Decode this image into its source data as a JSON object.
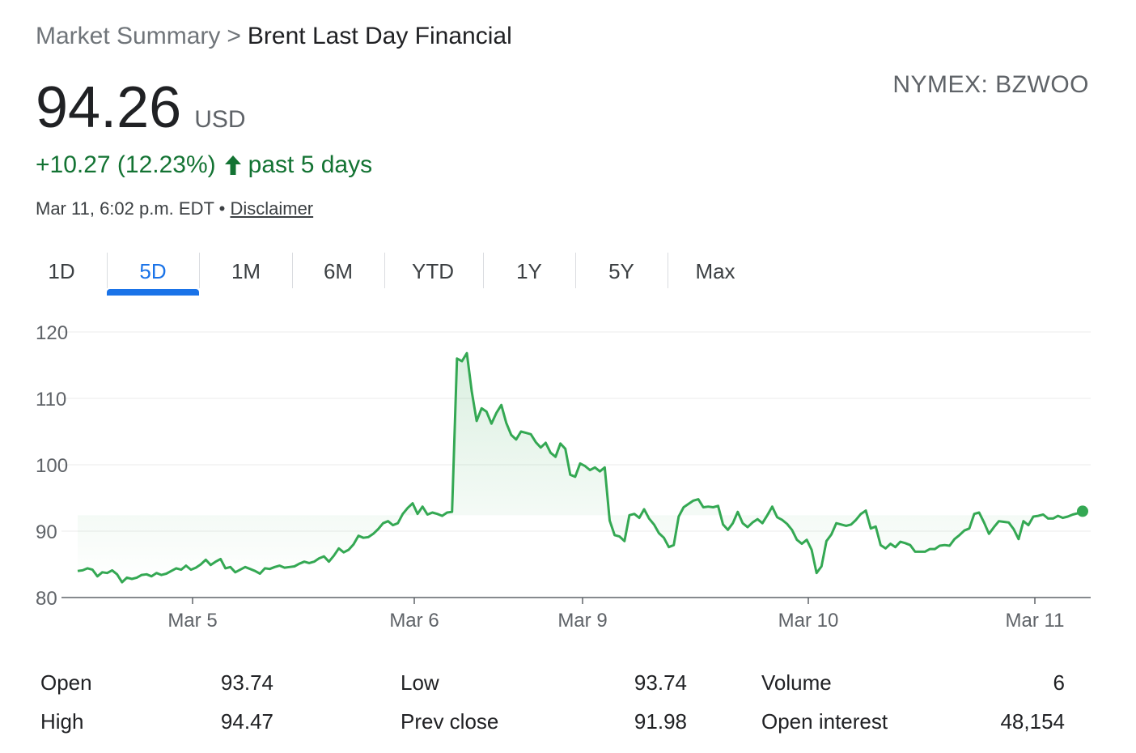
{
  "breadcrumb": {
    "parent": "Market Summary",
    "separator": ">",
    "current": "Brent Last Day Financial"
  },
  "exchange": "NYMEX: BZWOO",
  "quote": {
    "price": "94.26",
    "currency": "USD",
    "change": "+10.27 (12.23%)",
    "period": "past 5 days",
    "timestamp": "Mar 11, 6:02 p.m. EDT",
    "bullet": "•",
    "disclaimer": "Disclaimer"
  },
  "colors": {
    "up": "#137333",
    "line": "#34a853",
    "accent": "#1a73e8"
  },
  "tabs": [
    {
      "label": "1D",
      "active": false
    },
    {
      "label": "5D",
      "active": true
    },
    {
      "label": "1M",
      "active": false
    },
    {
      "label": "6M",
      "active": false
    },
    {
      "label": "YTD",
      "active": false
    },
    {
      "label": "1Y",
      "active": false
    },
    {
      "label": "5Y",
      "active": false
    },
    {
      "label": "Max",
      "active": false
    }
  ],
  "chart_data": {
    "type": "line",
    "ylim": [
      80,
      120
    ],
    "yticks": [
      80,
      90,
      100,
      110,
      120
    ],
    "x_labels": [
      "Mar 5",
      "Mar 6",
      "Mar 9",
      "Mar 10",
      "Mar 11"
    ],
    "grid": true,
    "series": [
      {
        "values": [
          84.0,
          84.1,
          84.4,
          84.2,
          83.2,
          83.8,
          83.7,
          84.1,
          83.5,
          82.3,
          83.0,
          82.8,
          83.0,
          83.4,
          83.5,
          83.2,
          83.7,
          83.4,
          83.6,
          84.0,
          84.4,
          84.2,
          84.8,
          84.2,
          84.5,
          85.0,
          85.7,
          84.9,
          85.4,
          85.8,
          84.4,
          84.6,
          83.8,
          84.2,
          84.6,
          84.3,
          84.0,
          83.6,
          84.4,
          84.3,
          84.6,
          84.8,
          84.5,
          84.6,
          84.7,
          85.1,
          85.4,
          85.2,
          85.4,
          85.9,
          86.2,
          85.4,
          86.3,
          87.4,
          86.8,
          87.2,
          88.0,
          89.3,
          89.0,
          89.1,
          89.6,
          90.3,
          91.2,
          91.5,
          90.9,
          91.2,
          92.6,
          93.5,
          94.2,
          92.6,
          93.7,
          92.5,
          92.8,
          92.6,
          92.3,
          92.8,
          92.9,
          116.0,
          115.6,
          116.8,
          111.0,
          106.6,
          108.5,
          108.0,
          106.2,
          107.8,
          109.0,
          106.3,
          104.5,
          103.8,
          105.0,
          104.8,
          104.6,
          103.4,
          102.6,
          103.3,
          101.8,
          101.2,
          103.2,
          102.4,
          98.5,
          98.2,
          100.2,
          99.8,
          99.2,
          99.6,
          99.0,
          99.6,
          91.6,
          89.4,
          89.2,
          88.5,
          92.4,
          92.6,
          92.0,
          93.3,
          91.9,
          91.0,
          89.7,
          89.0,
          87.6,
          87.9,
          92.2,
          93.6,
          94.1,
          94.6,
          94.8,
          93.6,
          93.7,
          93.6,
          93.8,
          91.0,
          90.2,
          91.2,
          92.9,
          91.2,
          90.6,
          91.3,
          91.8,
          91.2,
          92.4,
          93.7,
          92.1,
          91.7,
          91.1,
          90.2,
          88.7,
          88.1,
          88.7,
          87.2,
          83.7,
          84.7,
          88.5,
          89.5,
          91.2,
          91.0,
          90.8,
          91.0,
          91.7,
          92.6,
          93.1,
          90.4,
          90.7,
          87.9,
          87.4,
          88.1,
          87.6,
          88.4,
          88.2,
          87.9,
          86.9,
          86.9,
          86.9,
          87.3,
          87.3,
          87.8,
          87.9,
          87.8,
          88.8,
          89.4,
          90.1,
          90.4,
          92.6,
          92.8,
          91.3,
          89.6,
          90.6,
          91.5,
          91.4,
          91.3,
          90.3,
          88.8,
          91.5,
          90.9,
          92.2,
          92.3,
          92.5,
          91.9,
          91.9,
          92.3,
          92.0,
          92.2,
          92.5,
          92.7,
          93.0
        ]
      }
    ]
  },
  "stats": [
    {
      "label": "Open",
      "value": "93.74"
    },
    {
      "label": "High",
      "value": "94.47"
    },
    {
      "label": "Low",
      "value": "93.74"
    },
    {
      "label": "Prev close",
      "value": "91.98"
    },
    {
      "label": "Volume",
      "value": "6"
    },
    {
      "label": "Open interest",
      "value": "48,154"
    }
  ]
}
